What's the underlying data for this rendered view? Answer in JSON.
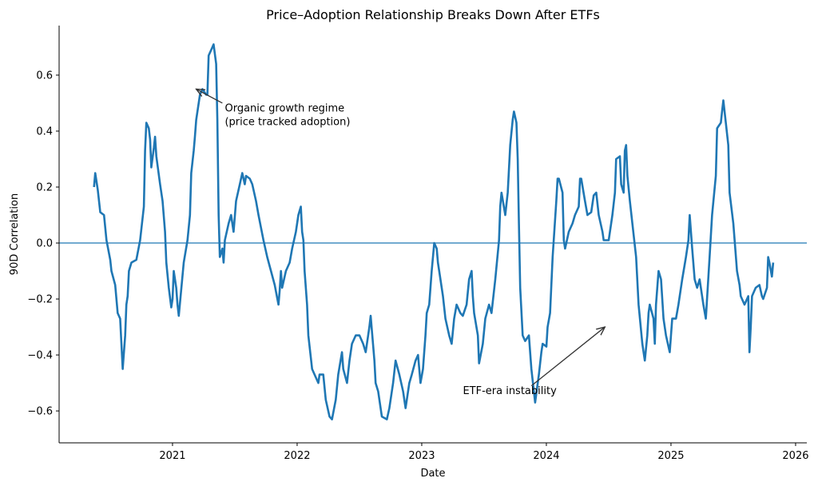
{
  "chart_data": {
    "type": "line",
    "title": "Price–Adoption Relationship Breaks Down After ETFs",
    "xlabel": "Date",
    "ylabel": "90D Correlation",
    "xlim": [
      2020.09,
      2026.09
    ],
    "ylim": [
      -0.714,
      0.777
    ],
    "x_ticks": [
      2021,
      2022,
      2023,
      2024,
      2025,
      2026
    ],
    "x_tick_labels": [
      "2021",
      "2022",
      "2023",
      "2024",
      "2025",
      "2026"
    ],
    "y_ticks": [
      -0.6,
      -0.4,
      -0.2,
      0.0,
      0.2,
      0.4,
      0.6
    ],
    "y_tick_labels": [
      "−0.6",
      "−0.4",
      "−0.2",
      "0.0",
      "0.2",
      "0.4",
      "0.6"
    ],
    "grid": false,
    "colors": {
      "line": "#1f77b4",
      "zero_line": "#1f77b4",
      "annotation": "#333333"
    },
    "reference_line": {
      "y": 0.0
    },
    "series": [
      {
        "x": [
          2020.37,
          2020.38,
          2020.4,
          2020.42,
          2020.45,
          2020.47,
          2020.5,
          2020.51,
          2020.54,
          2020.56,
          2020.58,
          2020.59,
          2020.6,
          2020.62,
          2020.63,
          2020.64,
          2020.65,
          2020.67,
          2020.71,
          2020.74,
          2020.77,
          2020.78,
          2020.79,
          2020.81,
          2020.82,
          2020.83,
          2020.85,
          2020.86,
          2020.87,
          2020.9,
          2020.92,
          2020.94,
          2020.95,
          2020.97,
          2020.99,
          2021.0,
          2021.01,
          2021.03,
          2021.04,
          2021.05,
          2021.09,
          2021.12,
          2021.14,
          2021.15,
          2021.17,
          2021.18,
          2021.19,
          2021.22,
          2021.24,
          2021.27,
          2021.28,
          2021.29,
          2021.32,
          2021.33,
          2021.35,
          2021.36,
          2021.37,
          2021.38,
          2021.4,
          2021.41,
          2021.42,
          2021.45,
          2021.47,
          2021.49,
          2021.51,
          2021.54,
          2021.56,
          2021.58,
          2021.59,
          2021.62,
          2021.64,
          2021.67,
          2021.69,
          2021.73,
          2021.76,
          2021.79,
          2021.82,
          2021.85,
          2021.86,
          2021.87,
          2021.88,
          2021.91,
          2021.94,
          2021.96,
          2021.99,
          2022.01,
          2022.03,
          2022.04,
          2022.05,
          2022.06,
          2022.08,
          2022.09,
          2022.12,
          2022.14,
          2022.17,
          2022.18,
          2022.21,
          2022.23,
          2022.26,
          2022.28,
          2022.31,
          2022.33,
          2022.36,
          2022.37,
          2022.4,
          2022.42,
          2022.44,
          2022.47,
          2022.5,
          2022.53,
          2022.55,
          2022.58,
          2022.59,
          2022.62,
          2022.63,
          2022.65,
          2022.68,
          2022.72,
          2022.74,
          2022.77,
          2022.79,
          2022.82,
          2022.85,
          2022.87,
          2022.9,
          2022.92,
          2022.95,
          2022.97,
          2022.99,
          2023.01,
          2023.03,
          2023.04,
          2023.06,
          2023.08,
          2023.09,
          2023.1,
          2023.12,
          2023.13,
          2023.14,
          2023.17,
          2023.19,
          2023.22,
          2023.24,
          2023.26,
          2023.28,
          2023.31,
          2023.33,
          2023.36,
          2023.38,
          2023.4,
          2023.41,
          2023.42,
          2023.45,
          2023.46,
          2023.49,
          2023.51,
          2023.54,
          2023.56,
          2023.59,
          2023.62,
          2023.63,
          2023.64,
          2023.67,
          2023.69,
          2023.71,
          2023.73,
          2023.74,
          2023.76,
          2023.77,
          2023.78,
          2023.79,
          2023.81,
          2023.83,
          2023.86,
          2023.88,
          2023.91,
          2023.94,
          2023.96,
          2023.97,
          2024.0,
          2024.01,
          2024.03,
          2024.05,
          2024.08,
          2024.09,
          2024.1,
          2024.13,
          2024.14,
          2024.15,
          2024.18,
          2024.21,
          2024.23,
          2024.26,
          2024.27,
          2024.28,
          2024.31,
          2024.33,
          2024.36,
          2024.38,
          2024.4,
          2024.42,
          2024.45,
          2024.46,
          2024.5,
          2024.53,
          2024.55,
          2024.56,
          2024.59,
          2024.6,
          2024.62,
          2024.63,
          2024.64,
          2024.65,
          2024.67,
          2024.69,
          2024.72,
          2024.74,
          2024.77,
          2024.79,
          2024.81,
          2024.82,
          2024.83,
          2024.86,
          2024.87,
          2024.88,
          2024.9,
          2024.92,
          2024.94,
          2024.96,
          2024.99,
          2025.01,
          2025.04,
          2025.06,
          2025.09,
          2025.12,
          2025.14,
          2025.15,
          2025.17,
          2025.19,
          2025.21,
          2025.23,
          2025.26,
          2025.28,
          2025.31,
          2025.33,
          2025.36,
          2025.37,
          2025.4,
          2025.41,
          2025.42,
          2025.44,
          2025.46,
          2025.47,
          2025.5,
          2025.53,
          2025.55,
          2025.56,
          2025.59,
          2025.62,
          2025.63,
          2025.64,
          2025.65,
          2025.68,
          2025.71,
          2025.73,
          2025.74,
          2025.77,
          2025.78,
          2025.79,
          2025.81,
          2025.82
        ],
        "y": [
          0.2,
          0.25,
          0.19,
          0.11,
          0.1,
          0.01,
          -0.06,
          -0.1,
          -0.15,
          -0.25,
          -0.27,
          -0.36,
          -0.45,
          -0.33,
          -0.22,
          -0.19,
          -0.1,
          -0.07,
          -0.06,
          0.01,
          0.13,
          0.33,
          0.43,
          0.41,
          0.37,
          0.27,
          0.34,
          0.38,
          0.31,
          0.21,
          0.15,
          0.04,
          -0.07,
          -0.16,
          -0.23,
          -0.2,
          -0.1,
          -0.16,
          -0.22,
          -0.26,
          -0.07,
          0.01,
          0.1,
          0.25,
          0.33,
          0.38,
          0.44,
          0.53,
          0.55,
          0.53,
          0.53,
          0.67,
          0.7,
          0.71,
          0.64,
          0.44,
          0.1,
          -0.05,
          -0.02,
          -0.07,
          0.01,
          0.07,
          0.1,
          0.04,
          0.15,
          0.21,
          0.25,
          0.21,
          0.24,
          0.23,
          0.21,
          0.15,
          0.1,
          0.01,
          -0.05,
          -0.1,
          -0.15,
          -0.22,
          -0.17,
          -0.1,
          -0.16,
          -0.1,
          -0.07,
          -0.02,
          0.04,
          0.1,
          0.13,
          0.04,
          0.01,
          -0.1,
          -0.22,
          -0.33,
          -0.45,
          -0.47,
          -0.5,
          -0.47,
          -0.47,
          -0.56,
          -0.62,
          -0.63,
          -0.56,
          -0.47,
          -0.39,
          -0.45,
          -0.5,
          -0.42,
          -0.36,
          -0.33,
          -0.33,
          -0.36,
          -0.39,
          -0.3,
          -0.26,
          -0.42,
          -0.5,
          -0.53,
          -0.62,
          -0.63,
          -0.59,
          -0.5,
          -0.42,
          -0.47,
          -0.53,
          -0.59,
          -0.5,
          -0.47,
          -0.42,
          -0.4,
          -0.5,
          -0.45,
          -0.33,
          -0.25,
          -0.22,
          -0.1,
          -0.05,
          0.0,
          -0.02,
          -0.07,
          -0.1,
          -0.19,
          -0.27,
          -0.33,
          -0.36,
          -0.27,
          -0.22,
          -0.25,
          -0.26,
          -0.22,
          -0.13,
          -0.1,
          -0.19,
          -0.25,
          -0.33,
          -0.43,
          -0.36,
          -0.27,
          -0.22,
          -0.25,
          -0.13,
          0.01,
          0.13,
          0.18,
          0.1,
          0.18,
          0.35,
          0.44,
          0.47,
          0.43,
          0.3,
          0.07,
          -0.16,
          -0.33,
          -0.35,
          -0.33,
          -0.45,
          -0.57,
          -0.47,
          -0.39,
          -0.36,
          -0.37,
          -0.3,
          -0.25,
          -0.05,
          0.15,
          0.23,
          0.23,
          0.18,
          0.01,
          -0.02,
          0.04,
          0.07,
          0.1,
          0.13,
          0.23,
          0.23,
          0.15,
          0.1,
          0.11,
          0.17,
          0.18,
          0.1,
          0.04,
          0.01,
          0.01,
          0.1,
          0.18,
          0.3,
          0.31,
          0.21,
          0.18,
          0.33,
          0.35,
          0.24,
          0.15,
          0.07,
          -0.05,
          -0.22,
          -0.36,
          -0.42,
          -0.33,
          -0.25,
          -0.22,
          -0.27,
          -0.36,
          -0.22,
          -0.1,
          -0.13,
          -0.27,
          -0.33,
          -0.39,
          -0.27,
          -0.27,
          -0.22,
          -0.13,
          -0.05,
          0.01,
          0.1,
          -0.02,
          -0.13,
          -0.16,
          -0.13,
          -0.22,
          -0.27,
          -0.05,
          0.1,
          0.24,
          0.41,
          0.43,
          0.47,
          0.51,
          0.43,
          0.35,
          0.18,
          0.07,
          -0.1,
          -0.15,
          -0.19,
          -0.22,
          -0.19,
          -0.39,
          -0.3,
          -0.19,
          -0.16,
          -0.15,
          -0.19,
          -0.2,
          -0.16,
          -0.05,
          -0.07,
          -0.12,
          -0.07
        ]
      }
    ],
    "annotations": [
      {
        "text_lines": [
          "Organic growth regime",
          "(price tracked adoption)"
        ],
        "text_x": 2021.42,
        "text_y": 0.47,
        "arrow_to_x": 2021.19,
        "arrow_to_y": 0.55,
        "arrow_from_x": 2021.4,
        "arrow_from_y": 0.5
      },
      {
        "text_lines": [
          "ETF-era instability"
        ],
        "text_x": 2023.33,
        "text_y": -0.54,
        "arrow_to_x": 2024.47,
        "arrow_to_y": -0.3,
        "arrow_from_x": 2023.88,
        "arrow_from_y": -0.51
      }
    ]
  }
}
